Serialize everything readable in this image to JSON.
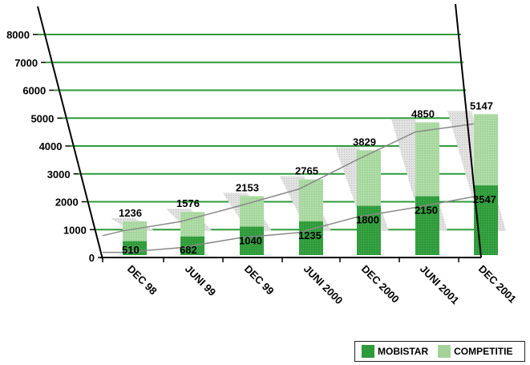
{
  "chart_data": {
    "type": "bar",
    "stacked": true,
    "categories": [
      "DEC 98",
      "JUNI 99",
      "DEC 99",
      "JUNI 2000",
      "DEC 2000",
      "JUNI 2001",
      "DEC 2001"
    ],
    "series": [
      {
        "name": "MOBISTAR",
        "values": [
          510,
          682,
          1040,
          1235,
          1800,
          2150,
          2547
        ]
      },
      {
        "name": "COMPETITIE",
        "values": [
          726,
          894,
          1113,
          1530,
          2029,
          2700,
          2600
        ]
      }
    ],
    "totals": [
      1236,
      1576,
      2153,
      2765,
      3829,
      4850,
      5147
    ],
    "total_labels": [
      "1236",
      "1576",
      "2153",
      "2765",
      "3829",
      "4850",
      "5147"
    ],
    "mobistar_labels": [
      "510",
      "682",
      "1040",
      "1235",
      "1800",
      "2150",
      "2547"
    ],
    "y_ticks": [
      "0",
      "1000",
      "2000",
      "3000",
      "4000",
      "5000",
      "6000",
      "7000",
      "8000"
    ],
    "ylim": [
      0,
      8000
    ],
    "grid": true,
    "legend_position": "bottom-right",
    "colors": {
      "mobistar": "#2e9a3a",
      "competitie": "#a3d39a",
      "grid": "#2f9a3a",
      "shadow": "#cfcfcf",
      "trend": "#8a8a8a"
    }
  },
  "legend": {
    "mobistar_label": "MOBISTAR",
    "competitie_label": "COMPETITIE"
  }
}
